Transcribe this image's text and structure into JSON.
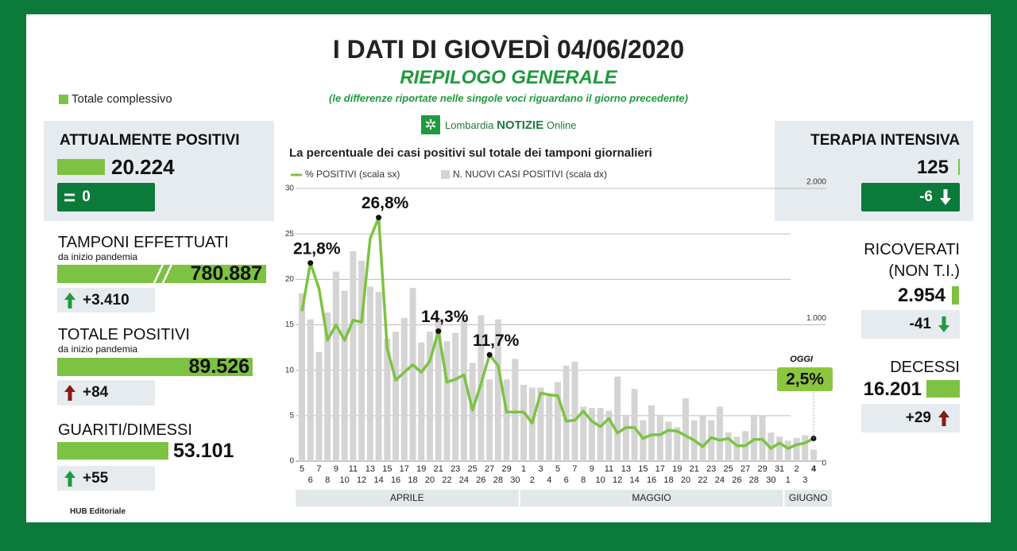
{
  "header": {
    "title": "I DATI DI GIOVEDÌ 04/06/2020",
    "subtitle": "RIEPILOGO GENERALE",
    "note": "(le differenze riportate nelle singole voci riguardano il giorno precedente)",
    "legend": "Totale complessivo",
    "brand": [
      "Lombardia",
      "NOTIZIE",
      "Online"
    ]
  },
  "left_panels": [
    {
      "title": "ATTUALMENTE POSITIVI",
      "value": "20.224",
      "change": "0"
    },
    {
      "title": "TAMPONI EFFETTUATI",
      "sub": "da inizio pandemia",
      "value": "780.887",
      "change": "+3.410"
    },
    {
      "title": "TOTALE POSITIVI",
      "sub": "da inizio pandemia",
      "value": "89.526",
      "change": "+84"
    },
    {
      "title": "GUARITI/DIMESSI",
      "value": "53.101",
      "change": "+55"
    }
  ],
  "right_panels": [
    {
      "title": "TERAPIA INTENSIVA",
      "value": "125",
      "change": "-6"
    },
    {
      "title": [
        "RICOVERATI",
        "(NON T.I.)"
      ],
      "value": "2.954",
      "change": "-41"
    },
    {
      "title": "DECESSI",
      "value": "16.201",
      "change": "+29"
    }
  ],
  "footer": "HUB Editoriale",
  "chart_data": {
    "type": "bar_line",
    "title": "La percentuale dei casi positivi sul totale dei tamponi giornalieri",
    "categories": [
      "5",
      "6",
      "7",
      "8",
      "9",
      "10",
      "11",
      "12",
      "13",
      "14",
      "15",
      "16",
      "17",
      "18",
      "19",
      "20",
      "21",
      "22",
      "23",
      "24",
      "25",
      "26",
      "27",
      "28",
      "29",
      "30",
      "1",
      "2",
      "3",
      "4",
      "5",
      "6",
      "7",
      "8",
      "9",
      "10",
      "11",
      "12",
      "13",
      "14",
      "15",
      "16",
      "17",
      "18",
      "19",
      "20",
      "21",
      "22",
      "23",
      "24",
      "25",
      "26",
      "27",
      "28",
      "29",
      "30",
      "31",
      "1",
      "2",
      "3",
      "4"
    ],
    "months": [
      "APRILE",
      "MAGGIO",
      "GIUGNO"
    ],
    "series": [
      {
        "name": "N. NUOVI CASI POSITIVI (scala dx)",
        "color": "#d4d4d4",
        "axis": "y2",
        "values": [
          1230,
          1040,
          800,
          1090,
          1390,
          1250,
          1540,
          1470,
          1280,
          1240,
          900,
          950,
          1050,
          1270,
          870,
          950,
          1050,
          880,
          940,
          1050,
          720,
          1070,
          600,
          1040,
          600,
          750,
          560,
          540,
          540,
          490,
          580,
          700,
          730,
          400,
          390,
          390,
          370,
          620,
          340,
          530,
          300,
          410,
          340,
          290,
          250,
          460,
          300,
          330,
          300,
          400,
          210,
          180,
          220,
          340,
          330,
          210,
          180,
          150,
          170,
          190,
          84
        ]
      },
      {
        "name": "% POSITIVI (scala sx)",
        "color": "#7dc242",
        "values": [
          16.5,
          21.8,
          19,
          13.3,
          15,
          13.3,
          15.5,
          15.3,
          24.5,
          26.8,
          12.4,
          8.9,
          9.8,
          10.6,
          9.8,
          11,
          14.3,
          8.7,
          9,
          9.5,
          5.6,
          8.5,
          11.7,
          10.5,
          5.4,
          5.4,
          5.4,
          4.2,
          7.5,
          7.3,
          7.2,
          4.4,
          4.5,
          5.5,
          4.4,
          3.8,
          4.7,
          3.1,
          3.7,
          3.7,
          2.5,
          2.9,
          2.9,
          3.4,
          3.3,
          2.8,
          2.3,
          1.6,
          2.6,
          2.3,
          2.5,
          1.7,
          1.7,
          2.4,
          2.4,
          1.4,
          2.0,
          1.4,
          1.8,
          2.0,
          2.5
        ],
        "value_labels": [
          null,
          "21,8%",
          null,
          null,
          null,
          null,
          null,
          null,
          null,
          "26,8%",
          null,
          null,
          null,
          null,
          null,
          null,
          "14,3%",
          null,
          null,
          null,
          null,
          null,
          "11,7%",
          null,
          null,
          null,
          null,
          null,
          null,
          null,
          null,
          null,
          null,
          null,
          null,
          null,
          null,
          null,
          null,
          null,
          null,
          null,
          null,
          null,
          null,
          null,
          null,
          null,
          null,
          null,
          null,
          null,
          null,
          null,
          null,
          null,
          null,
          null,
          null,
          null,
          "2,5%"
        ]
      }
    ],
    "annotation": "OGGI",
    "ylim": [
      0,
      30
    ],
    "yticks": [
      0,
      5,
      10,
      15,
      20,
      25,
      30
    ],
    "y2lim": [
      0,
      2000
    ],
    "y2ticks": [
      0,
      {
        "value": 1000,
        "label": "1.000"
      },
      {
        "value": 2000,
        "label": "2.000"
      }
    ],
    "grid": true
  }
}
